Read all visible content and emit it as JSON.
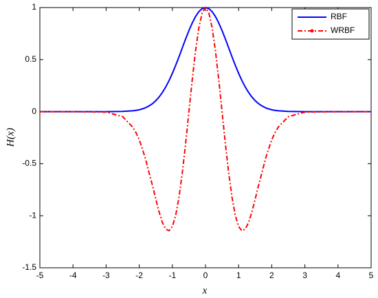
{
  "chart_data": {
    "type": "line",
    "xlabel": "x",
    "ylabel": "H(x)",
    "x": [
      -5,
      -4,
      -3,
      -2.5,
      -2.2,
      -2.1,
      -2,
      -1.9,
      -1.8,
      -1.7,
      -1.6,
      -1.5,
      -1.4,
      -1.3,
      -1.2,
      -1.1,
      -1,
      -0.9,
      -0.8,
      -0.7,
      -0.6,
      -0.5,
      -0.4,
      -0.3,
      -0.2,
      -0.1,
      0,
      0.1,
      0.2,
      0.3,
      0.4,
      0.5,
      0.6,
      0.7,
      0.8,
      0.9,
      1,
      1.1,
      1.2,
      1.3,
      1.4,
      1.5,
      1.6,
      1.7,
      1.8,
      1.9,
      2,
      2.1,
      2.2,
      2.5,
      3,
      4,
      5
    ],
    "series": [
      {
        "name": "RBF",
        "color": "#0000ff",
        "dash": "solid",
        "values": [
          0,
          0,
          0,
          0.002,
          0.008,
          0.012,
          0.018,
          0.027,
          0.039,
          0.056,
          0.077,
          0.105,
          0.141,
          0.185,
          0.237,
          0.298,
          0.368,
          0.445,
          0.527,
          0.613,
          0.698,
          0.779,
          0.852,
          0.914,
          0.961,
          0.99,
          1,
          0.99,
          0.961,
          0.914,
          0.852,
          0.779,
          0.698,
          0.613,
          0.527,
          0.445,
          0.368,
          0.298,
          0.237,
          0.185,
          0.141,
          0.105,
          0.077,
          0.056,
          0.039,
          0.027,
          0.018,
          0.012,
          0.008,
          0.002,
          0,
          0,
          0
        ]
      },
      {
        "name": "WRBF",
        "color": "#ff0000",
        "dash": "dashdot",
        "values": [
          0,
          0,
          -0.004,
          -0.048,
          -0.147,
          -0.2,
          -0.27,
          -0.363,
          -0.466,
          -0.591,
          -0.711,
          -0.84,
          -0.964,
          -1.066,
          -1.128,
          -1.144,
          -1.104,
          -0.997,
          -0.822,
          -0.588,
          -0.307,
          0,
          0.307,
          0.585,
          0.807,
          0.95,
          1,
          0.95,
          0.807,
          0.585,
          0.307,
          0,
          -0.307,
          -0.588,
          -0.822,
          -0.997,
          -1.104,
          -1.144,
          -1.128,
          -1.066,
          -0.964,
          -0.84,
          -0.711,
          -0.591,
          -0.466,
          -0.363,
          -0.27,
          -0.2,
          -0.147,
          -0.048,
          -0.004,
          0,
          0
        ]
      }
    ],
    "xlim": [
      -5,
      5
    ],
    "xticks": [
      -5,
      -4,
      -3,
      -2,
      -1,
      0,
      1,
      2,
      3,
      4,
      5
    ],
    "ylim": [
      -1.5,
      1
    ],
    "yticks": [
      -1.5,
      -1,
      -0.5,
      0,
      0.5,
      1
    ],
    "grid": false,
    "legend": "upper right"
  }
}
